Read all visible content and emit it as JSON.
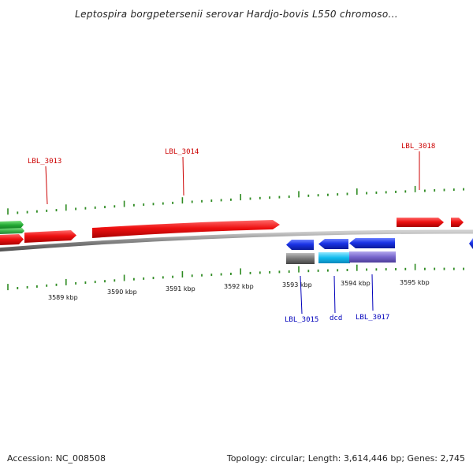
{
  "title": "Leptospira borgpetersenii serovar Hardjo-bovis L550 chromoso...",
  "footer": {
    "accession": "Accession: NC_008508",
    "summary": "Topology: circular; Length: 3,614,446 bp; Genes: 2,745"
  },
  "colors": {
    "backbone": "#888888",
    "tick": "#2e8b22",
    "forward_gene": "#ee1111",
    "reverse_gene": "#1a33e6",
    "forward_label": "#cc0000",
    "reverse_label": "#0000bb",
    "green_gene": "#22aa33",
    "gray_feature": "#777777",
    "cyan_feature": "#11bbee",
    "purple_feature": "#7766cc"
  },
  "scale": {
    "labels": [
      "3589 kbp",
      "3590 kbp",
      "3591 kbp",
      "3592 kbp",
      "3593 kbp",
      "3594 kbp",
      "3595 kbp"
    ]
  },
  "gene_labels": {
    "lbl_3013": "LBL_3013",
    "lbl_3014": "LBL_3014",
    "lbl_3018": "LBL_3018",
    "lbl_3015": "LBL_3015",
    "dcd": "dcd",
    "lbl_3017": "LBL_3017"
  }
}
